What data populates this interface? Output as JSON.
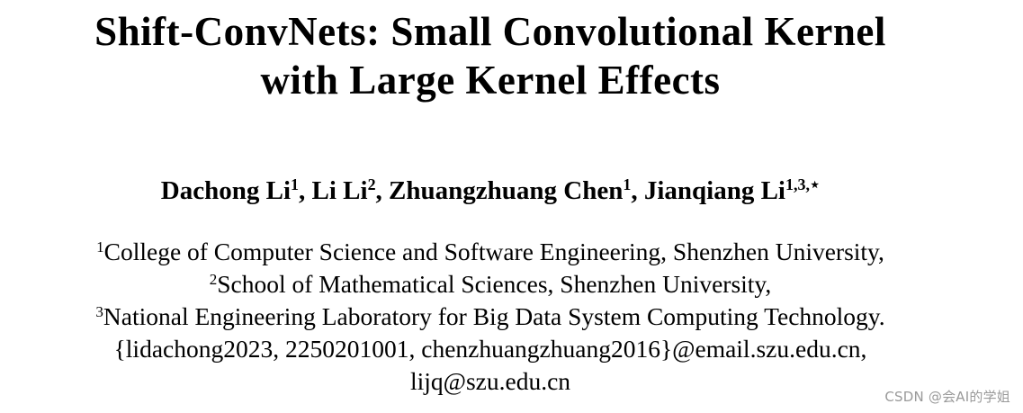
{
  "paper": {
    "title": {
      "line1": "Shift-ConvNets: Small Convolutional Kernel",
      "line2": "with Large Kernel Effects"
    },
    "authors": [
      {
        "name": "Dachong Li",
        "sup": "1",
        "sep": ", "
      },
      {
        "name": "Li Li",
        "sup": "2",
        "sep": ", "
      },
      {
        "name": "Zhuangzhuang Chen",
        "sup": "1",
        "sep": ", "
      },
      {
        "name": "Jianqiang Li",
        "sup": "1,3,⋆",
        "sep": ""
      }
    ],
    "affiliations": [
      {
        "sup": "1",
        "text": "College of Computer Science and Software Engineering, Shenzhen University,"
      },
      {
        "sup": "2",
        "text": "School of Mathematical Sciences, Shenzhen University,"
      },
      {
        "sup": "3",
        "text": "National Engineering Laboratory for Big Data System Computing Technology."
      }
    ],
    "emails": {
      "line1": "{lidachong2023, 2250201001, chenzhuangzhuang2016}@email.szu.edu.cn,",
      "line2": "lijq@szu.edu.cn"
    }
  },
  "watermark": {
    "text": "CSDN @会AI的学姐"
  }
}
